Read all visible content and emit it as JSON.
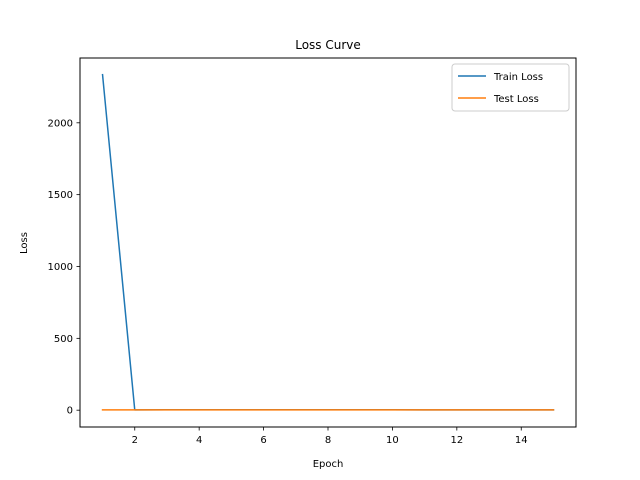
{
  "chart_data": {
    "type": "line",
    "title": "Loss Curve",
    "xlabel": "Epoch",
    "ylabel": "Loss",
    "xlim": [
      0.3,
      15.7
    ],
    "ylim": [
      -117,
      2451
    ],
    "xticks": [
      2,
      4,
      6,
      8,
      10,
      12,
      14
    ],
    "xtick_labels": [
      "2",
      "4",
      "6",
      "8",
      "10",
      "12",
      "14"
    ],
    "yticks": [
      0,
      500,
      1000,
      1500,
      2000
    ],
    "ytick_labels": [
      "0",
      "500",
      "1000",
      "1500",
      "2000"
    ],
    "grid": false,
    "legend_position": "top-right",
    "x": [
      1,
      2,
      3,
      4,
      5,
      6,
      7,
      8,
      9,
      10,
      11,
      12,
      13,
      14,
      15
    ],
    "series": [
      {
        "name": "Train Loss",
        "color": "#1f77b4",
        "values": [
          2335,
          2,
          3,
          3,
          3,
          3,
          3,
          3,
          3,
          3,
          2,
          2,
          2,
          2,
          2
        ]
      },
      {
        "name": "Test Loss",
        "color": "#ff7f0e",
        "values": [
          2,
          2,
          2,
          2,
          2,
          2,
          2,
          2,
          2,
          2,
          2,
          2,
          2,
          2,
          2
        ]
      }
    ]
  }
}
